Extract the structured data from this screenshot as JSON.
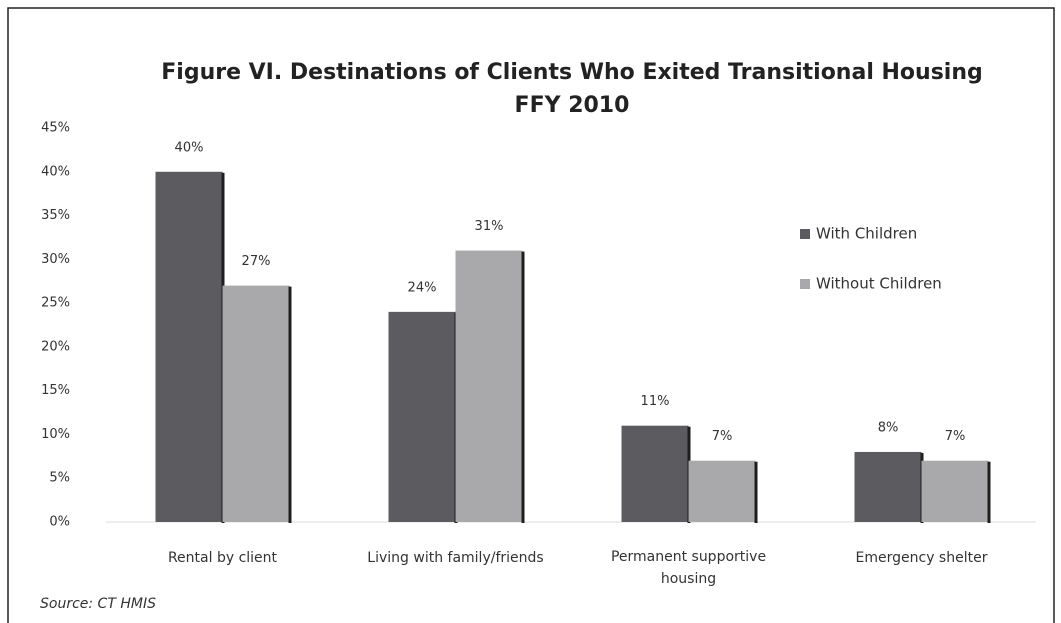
{
  "chart_data": {
    "type": "bar",
    "title": "Figure VI.  Destinations of Clients Who Exited Transitional Housing",
    "subtitle": "FFY 2010",
    "categories": [
      "Rental by client",
      "Living with family/friends",
      "Permanent supportive housing",
      "Emergency shelter"
    ],
    "series": [
      {
        "name": "With Children",
        "color": "#5b5b60",
        "values": [
          40,
          24,
          11,
          8
        ],
        "value_labels": [
          "40%",
          "24%",
          "11%",
          "8%"
        ]
      },
      {
        "name": "Without Children",
        "color": "#a9a9ac",
        "values": [
          27,
          31,
          7,
          7
        ],
        "value_labels": [
          "27%",
          "31%",
          "7%",
          "7%"
        ]
      }
    ],
    "ylim": [
      0,
      45
    ],
    "yticks": [
      {
        "value": 0,
        "label": "0%"
      },
      {
        "value": 5,
        "label": "5%"
      },
      {
        "value": 10,
        "label": "10%"
      },
      {
        "value": 15,
        "label": "15%"
      },
      {
        "value": 20,
        "label": "20%"
      },
      {
        "value": 25,
        "label": "25%"
      },
      {
        "value": 30,
        "label": "30%"
      },
      {
        "value": 35,
        "label": "35%"
      },
      {
        "value": 40,
        "label": "40%"
      },
      {
        "value": 45,
        "label": "45%"
      }
    ],
    "grid": false,
    "legend": "right",
    "annotations": [
      "Source:   CT HMIS"
    ]
  }
}
